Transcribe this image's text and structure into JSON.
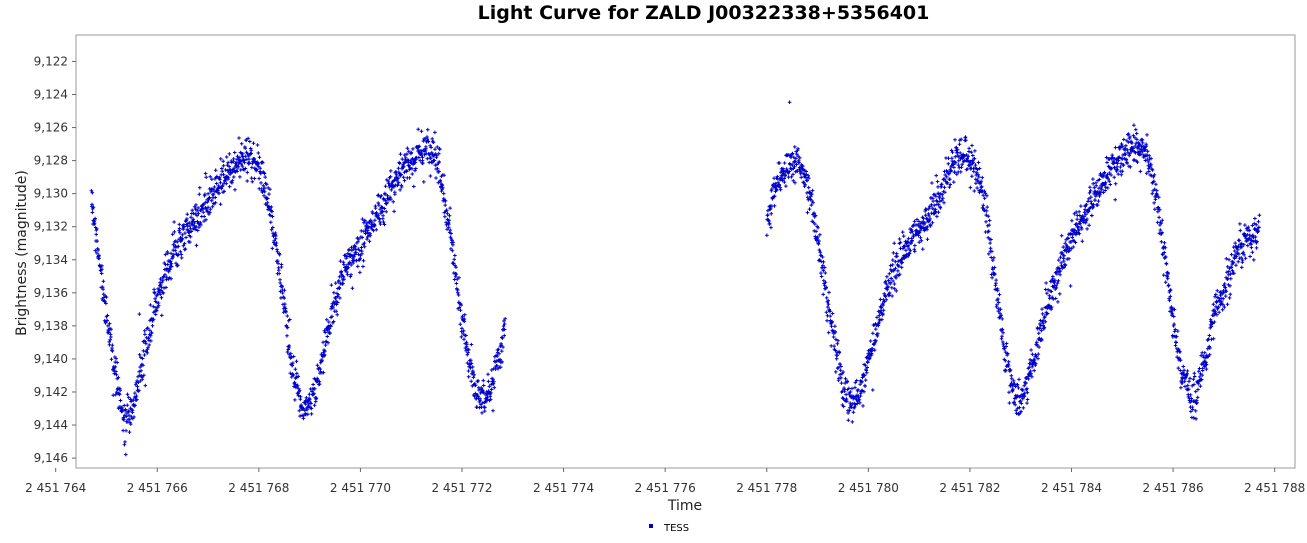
{
  "chart_data": {
    "type": "scatter",
    "title": "Light Curve for ZALD J00322338+5356401",
    "xlabel": "Time",
    "ylabel": "Brightness (magnitude)",
    "y_inverted": true,
    "xlim": [
      2451764.4,
      2451788.4
    ],
    "ylim": [
      9.1204,
      9.1466
    ],
    "x_ticks": [
      2451764,
      2451766,
      2451768,
      2451770,
      2451772,
      2451774,
      2451776,
      2451778,
      2451780,
      2451782,
      2451784,
      2451786,
      2451788
    ],
    "x_tick_labels": [
      "2 451 764",
      "2 451 766",
      "2 451 768",
      "2 451 770",
      "2 451 772",
      "2 451 774",
      "2 451 776",
      "2 451 778",
      "2 451 780",
      "2 451 782",
      "2 451 784",
      "2 451 786",
      "2 451 788"
    ],
    "y_ticks": [
      9.122,
      9.124,
      9.126,
      9.128,
      9.13,
      9.132,
      9.134,
      9.136,
      9.138,
      9.14,
      9.142,
      9.144,
      9.146
    ],
    "y_tick_labels": [
      "9,122",
      "9,124",
      "9,126",
      "9,128",
      "9,130",
      "9,132",
      "9,134",
      "9,136",
      "9,138",
      "9,140",
      "9,142",
      "9,144",
      "9,146"
    ],
    "grid": false,
    "legend_position": "bottom-center",
    "series": [
      {
        "name": "TESS",
        "color": "#0000cc",
        "marker": "plus",
        "segments": [
          [
            [
              2451764.7,
              9.1303
            ],
            [
              2451764.85,
              9.134
            ],
            [
              2451765.0,
              9.1375
            ],
            [
              2451765.2,
              9.1412
            ],
            [
              2451765.35,
              9.1438
            ],
            [
              2451765.5,
              9.143
            ],
            [
              2451765.7,
              9.1405
            ],
            [
              2451765.9,
              9.1375
            ],
            [
              2451766.15,
              9.135
            ],
            [
              2451766.4,
              9.133
            ],
            [
              2451766.7,
              9.1318
            ],
            [
              2451767.0,
              9.1305
            ],
            [
              2451767.3,
              9.129
            ],
            [
              2451767.6,
              9.128
            ],
            [
              2451767.8,
              9.1278
            ],
            [
              2451768.0,
              9.1282
            ],
            [
              2451768.2,
              9.1305
            ],
            [
              2451768.45,
              9.1355
            ],
            [
              2451768.65,
              9.1405
            ],
            [
              2451768.85,
              9.1428
            ],
            [
              2451769.05,
              9.1425
            ],
            [
              2451769.25,
              9.14
            ],
            [
              2451769.45,
              9.137
            ],
            [
              2451769.7,
              9.1345
            ],
            [
              2451770.0,
              9.133
            ],
            [
              2451770.3,
              9.1315
            ],
            [
              2451770.6,
              9.1298
            ],
            [
              2451770.9,
              9.1282
            ],
            [
              2451771.15,
              9.1275
            ],
            [
              2451771.35,
              9.1274
            ],
            [
              2451771.55,
              9.1285
            ],
            [
              2451771.75,
              9.132
            ],
            [
              2451771.95,
              9.1365
            ],
            [
              2451772.15,
              9.1405
            ],
            [
              2451772.35,
              9.1425
            ],
            [
              2451772.55,
              9.1418
            ],
            [
              2451772.75,
              9.1395
            ],
            [
              2451772.85,
              9.1375
            ]
          ],
          [
            [
              2451778.0,
              9.1315
            ],
            [
              2451778.2,
              9.1295
            ],
            [
              2451778.45,
              9.1283
            ],
            [
              2451778.65,
              9.1282
            ],
            [
              2451778.85,
              9.13
            ],
            [
              2451779.05,
              9.1335
            ],
            [
              2451779.25,
              9.1375
            ],
            [
              2451779.45,
              9.141
            ],
            [
              2451779.65,
              9.1428
            ],
            [
              2451779.85,
              9.142
            ],
            [
              2451780.05,
              9.1395
            ],
            [
              2451780.25,
              9.137
            ],
            [
              2451780.5,
              9.1345
            ],
            [
              2451780.8,
              9.133
            ],
            [
              2451781.1,
              9.1318
            ],
            [
              2451781.4,
              9.13
            ],
            [
              2451781.65,
              9.1285
            ],
            [
              2451781.9,
              9.1276
            ],
            [
              2451782.1,
              9.1283
            ],
            [
              2451782.3,
              9.131
            ],
            [
              2451782.5,
              9.1355
            ],
            [
              2451782.7,
              9.1398
            ],
            [
              2451782.9,
              9.1425
            ],
            [
              2451783.1,
              9.142
            ],
            [
              2451783.3,
              9.1395
            ],
            [
              2451783.55,
              9.1365
            ],
            [
              2451783.8,
              9.134
            ],
            [
              2451784.1,
              9.1322
            ],
            [
              2451784.4,
              9.1305
            ],
            [
              2451784.7,
              9.129
            ],
            [
              2451784.95,
              9.1278
            ],
            [
              2451785.2,
              9.127
            ],
            [
              2451785.4,
              9.1272
            ],
            [
              2451785.6,
              9.129
            ],
            [
              2451785.8,
              9.133
            ],
            [
              2451786.0,
              9.1378
            ],
            [
              2451786.2,
              9.1412
            ],
            [
              2451786.4,
              9.1425
            ],
            [
              2451786.6,
              9.1405
            ],
            [
              2451786.8,
              9.1375
            ],
            [
              2451787.05,
              9.1352
            ],
            [
              2451787.3,
              9.1335
            ],
            [
              2451787.6,
              9.1322
            ],
            [
              2451787.7,
              9.132
            ]
          ]
        ]
      }
    ]
  }
}
